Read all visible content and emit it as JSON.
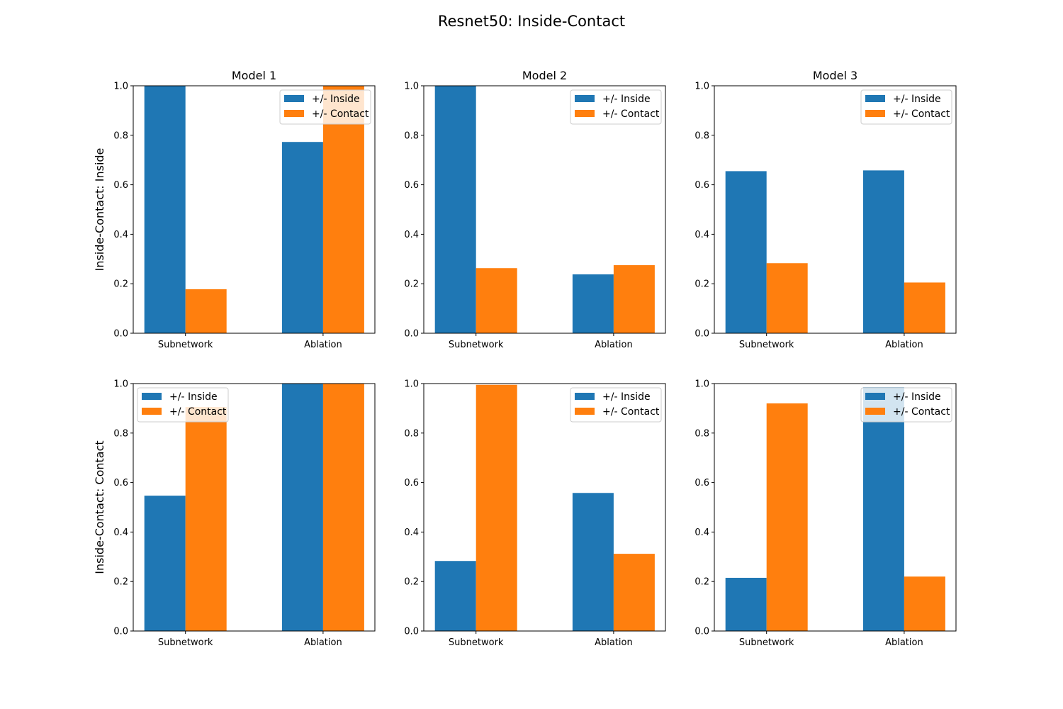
{
  "chart_data": {
    "type": "bar",
    "title": "Resnet50: Inside-Contact",
    "categories": [
      "Subnetwork",
      "Ablation"
    ],
    "series_names": [
      "+/- Inside",
      "+/- Contact"
    ],
    "colors": {
      "inside": "#1f77b4",
      "contact": "#ff7f0e"
    },
    "ylim": [
      0,
      1.0
    ],
    "yticks": [
      "0.0",
      "0.2",
      "0.4",
      "0.6",
      "0.8",
      "1.0"
    ],
    "col_titles": [
      "Model 1",
      "Model 2",
      "Model 3"
    ],
    "row_labels": [
      "Inside-Contact: Inside",
      "Inside-Contact: Contact"
    ],
    "legend_location": "upper right (upper left in row 2, Model 1)",
    "panels": [
      {
        "row": 0,
        "col": 0,
        "title": "Model 1",
        "ylabel": "Inside-Contact: Inside",
        "series": [
          {
            "name": "+/- Inside",
            "values": [
              1.0,
              0.773
            ]
          },
          {
            "name": "+/- Contact",
            "values": [
              0.178,
              1.0
            ]
          }
        ]
      },
      {
        "row": 0,
        "col": 1,
        "title": "Model 2",
        "ylabel": "",
        "series": [
          {
            "name": "+/- Inside",
            "values": [
              1.0,
              0.238
            ]
          },
          {
            "name": "+/- Contact",
            "values": [
              0.263,
              0.275
            ]
          }
        ]
      },
      {
        "row": 0,
        "col": 2,
        "title": "Model 3",
        "ylabel": "",
        "series": [
          {
            "name": "+/- Inside",
            "values": [
              0.655,
              0.658
            ]
          },
          {
            "name": "+/- Contact",
            "values": [
              0.283,
              0.205
            ]
          }
        ]
      },
      {
        "row": 1,
        "col": 0,
        "title": "",
        "ylabel": "Inside-Contact: Contact",
        "series": [
          {
            "name": "+/- Inside",
            "values": [
              0.547,
              1.0
            ]
          },
          {
            "name": "+/- Contact",
            "values": [
              0.905,
              1.0
            ]
          }
        ]
      },
      {
        "row": 1,
        "col": 1,
        "title": "",
        "ylabel": "",
        "series": [
          {
            "name": "+/- Inside",
            "values": [
              0.283,
              0.558
            ]
          },
          {
            "name": "+/- Contact",
            "values": [
              0.995,
              0.312
            ]
          }
        ]
      },
      {
        "row": 1,
        "col": 2,
        "title": "",
        "ylabel": "",
        "series": [
          {
            "name": "+/- Inside",
            "values": [
              0.215,
              0.985
            ]
          },
          {
            "name": "+/- Contact",
            "values": [
              0.92,
              0.22
            ]
          }
        ]
      }
    ]
  }
}
